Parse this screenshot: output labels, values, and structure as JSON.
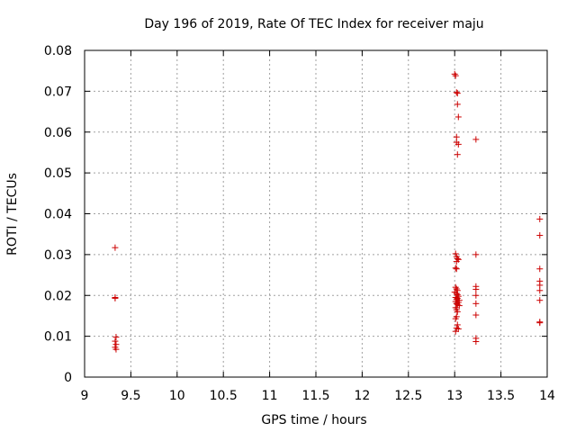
{
  "chart_data": {
    "type": "scatter",
    "title": "Day 196 of 2019, Rate Of TEC Index for receiver maju",
    "xlabel": "GPS time / hours",
    "ylabel": "ROTI / TECUs",
    "xlim": [
      9,
      14
    ],
    "ylim": [
      0,
      0.08
    ],
    "x_ticks": [
      "9",
      "9.5",
      "10",
      "10.5",
      "11",
      "11.5",
      "12",
      "12.5",
      "13",
      "13.5",
      "14"
    ],
    "y_ticks": [
      "0",
      "0.01",
      "0.02",
      "0.03",
      "0.04",
      "0.05",
      "0.06",
      "0.07",
      "0.08"
    ],
    "grid": true,
    "marker": "+",
    "colors": {
      "points": "#cc0000",
      "grid": "#a0a0a0",
      "axes": "#000000"
    },
    "series": [
      {
        "name": "ROTI",
        "points": [
          [
            9.33,
            0.0317
          ],
          [
            9.33,
            0.0195
          ],
          [
            9.33,
            0.0193
          ],
          [
            9.34,
            0.0098
          ],
          [
            9.33,
            0.0088
          ],
          [
            9.34,
            0.008
          ],
          [
            9.33,
            0.0073
          ],
          [
            9.34,
            0.0068
          ],
          [
            13.0,
            0.0742
          ],
          [
            13.01,
            0.0738
          ],
          [
            13.02,
            0.0697
          ],
          [
            13.03,
            0.0695
          ],
          [
            13.03,
            0.0668
          ],
          [
            13.04,
            0.0637
          ],
          [
            13.02,
            0.0588
          ],
          [
            13.02,
            0.0575
          ],
          [
            13.04,
            0.057
          ],
          [
            13.03,
            0.0545
          ],
          [
            13.01,
            0.0302
          ],
          [
            13.02,
            0.0295
          ],
          [
            13.03,
            0.029
          ],
          [
            13.04,
            0.0288
          ],
          [
            13.02,
            0.0283
          ],
          [
            13.01,
            0.0267
          ],
          [
            13.02,
            0.0265
          ],
          [
            13.01,
            0.022
          ],
          [
            13.02,
            0.0216
          ],
          [
            13.03,
            0.0212
          ],
          [
            13.0,
            0.0208
          ],
          [
            13.02,
            0.0205
          ],
          [
            13.03,
            0.0202
          ],
          [
            13.04,
            0.0198
          ],
          [
            13.01,
            0.0195
          ],
          [
            13.03,
            0.0193
          ],
          [
            13.02,
            0.019
          ],
          [
            13.05,
            0.0188
          ],
          [
            13.01,
            0.0185
          ],
          [
            13.04,
            0.0183
          ],
          [
            13.02,
            0.018
          ],
          [
            13.03,
            0.0178
          ],
          [
            13.05,
            0.0175
          ],
          [
            13.01,
            0.017
          ],
          [
            13.02,
            0.0165
          ],
          [
            13.03,
            0.016
          ],
          [
            13.02,
            0.0148
          ],
          [
            13.01,
            0.0143
          ],
          [
            13.03,
            0.0128
          ],
          [
            13.02,
            0.012
          ],
          [
            13.04,
            0.0118
          ],
          [
            13.01,
            0.0112
          ],
          [
            13.23,
            0.0582
          ],
          [
            13.23,
            0.03
          ],
          [
            13.23,
            0.0222
          ],
          [
            13.23,
            0.0215
          ],
          [
            13.23,
            0.02
          ],
          [
            13.23,
            0.018
          ],
          [
            13.23,
            0.0152
          ],
          [
            13.23,
            0.0095
          ],
          [
            13.23,
            0.0087
          ],
          [
            13.92,
            0.0387
          ],
          [
            13.92,
            0.0347
          ],
          [
            13.92,
            0.0265
          ],
          [
            13.92,
            0.0235
          ],
          [
            13.92,
            0.0225
          ],
          [
            13.92,
            0.0212
          ],
          [
            13.92,
            0.0188
          ],
          [
            13.92,
            0.0135
          ],
          [
            13.92,
            0.0133
          ]
        ]
      }
    ]
  }
}
